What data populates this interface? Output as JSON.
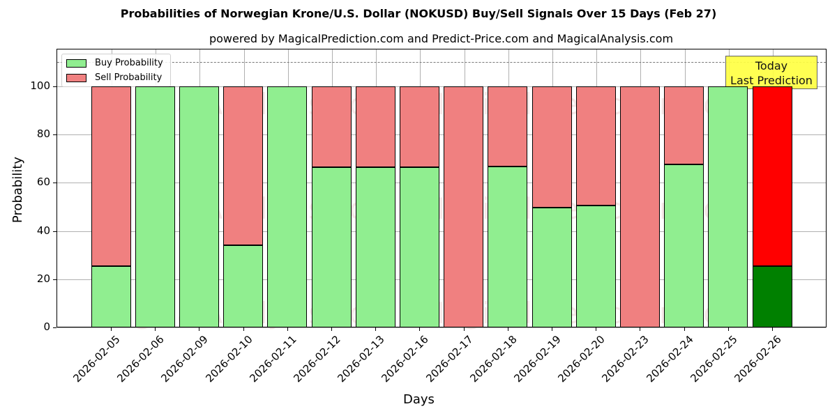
{
  "chart_data": {
    "type": "bar",
    "stacked": true,
    "title": "Probabilities of Norwegian Krone/U.S. Dollar (NOKUSD) Buy/Sell Signals Over 15 Days (Feb 27)",
    "subtitle": "powered by MagicalPrediction.com and Predict-Price.com and MagicalAnalysis.com",
    "xlabel": "Days",
    "ylabel": "Probability",
    "ylim": [
      0,
      115
    ],
    "yticks": [
      0,
      20,
      40,
      60,
      80,
      100
    ],
    "grid": true,
    "legend_position": "upper left",
    "reference_line": 110,
    "categories": [
      "2026-02-05",
      "2026-02-06",
      "2026-02-09",
      "2026-02-10",
      "2026-02-11",
      "2026-02-12",
      "2026-02-13",
      "2026-02-16",
      "2026-02-17",
      "2026-02-18",
      "2026-02-19",
      "2026-02-20",
      "2026-02-23",
      "2026-02-24",
      "2026-02-25",
      "2026-02-26"
    ],
    "series": [
      {
        "name": "Buy Probability",
        "color": "#90ee90",
        "values": [
          25.4,
          100,
          100,
          34.1,
          100,
          66.5,
          66.5,
          66.5,
          0,
          66.8,
          49.7,
          50.6,
          0,
          67.6,
          100,
          25.4
        ]
      },
      {
        "name": "Sell Probability",
        "color": "#f08080",
        "values": [
          74.6,
          0,
          0,
          65.9,
          0,
          33.5,
          33.5,
          33.5,
          100,
          33.2,
          50.3,
          49.4,
          100,
          32.4,
          0,
          74.6
        ]
      }
    ],
    "highlight": {
      "category": "2026-02-26",
      "buy_color": "#008000",
      "sell_color": "#ff0000"
    },
    "annotation": "Today\nLast Prediction"
  },
  "legend": {
    "buy": "Buy Probability",
    "sell": "Sell Probability"
  },
  "annotation": {
    "line1": "Today",
    "line2": "Last Prediction"
  },
  "watermarks": [
    "MagicalAnalysis.com",
    "MagicalPrediction.com"
  ]
}
